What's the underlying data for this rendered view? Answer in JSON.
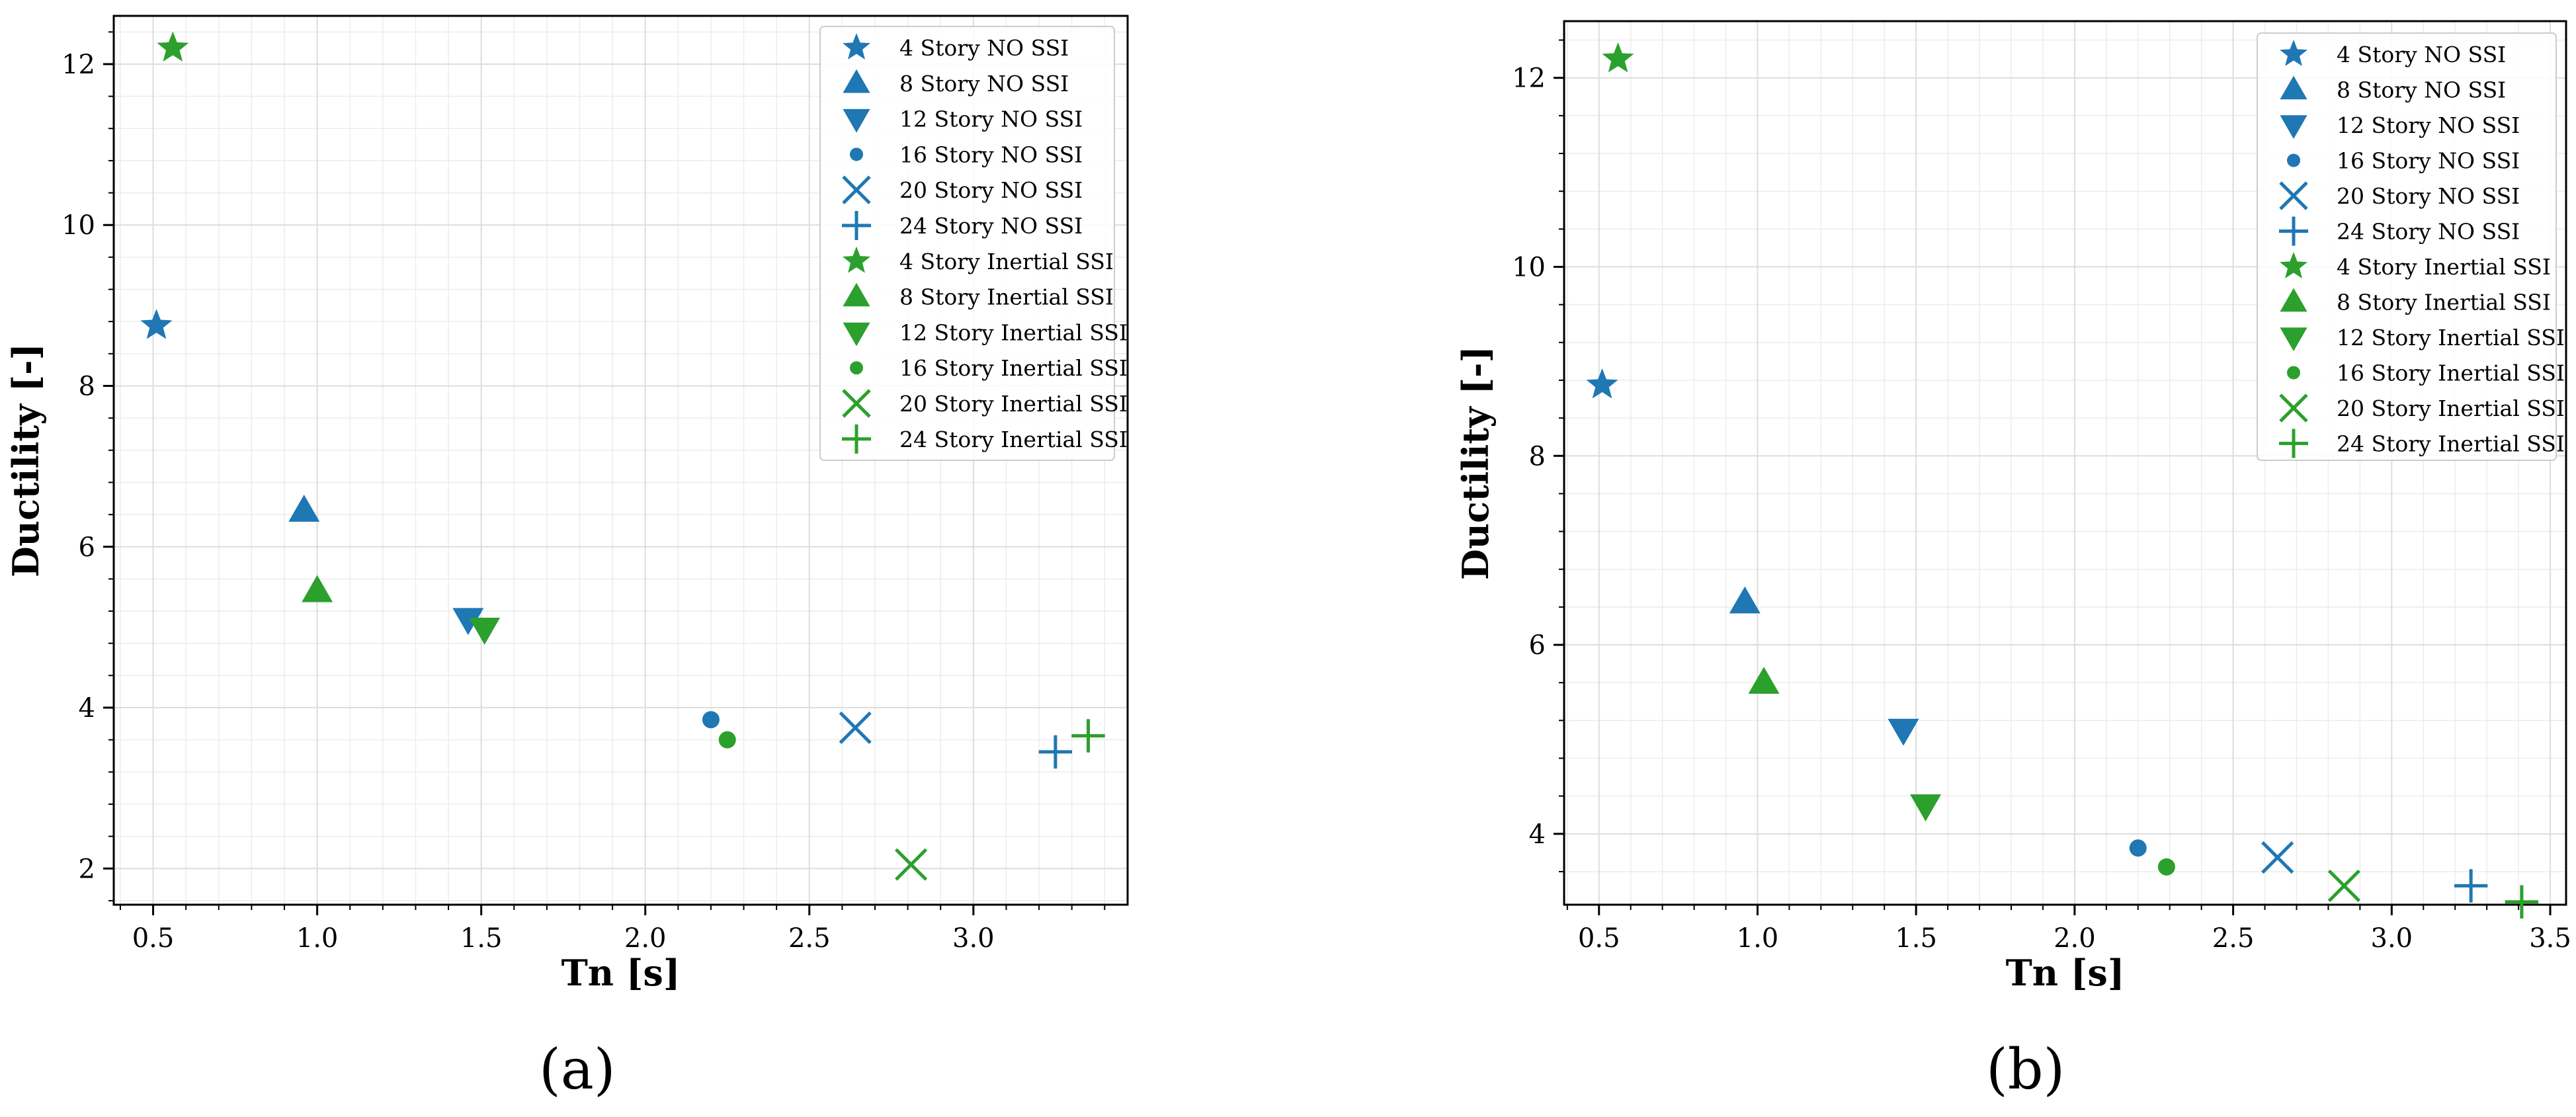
{
  "figure": {
    "series_style": [
      {
        "group": "NO SSI",
        "color": "#1f77b4"
      },
      {
        "group": "Inertial SSI",
        "color": "#2ca02c"
      }
    ],
    "markers": [
      "star-icon",
      "triangle-up-icon",
      "triangle-down-icon",
      "circle-icon",
      "x-icon",
      "plus-icon"
    ]
  },
  "chart_data": [
    {
      "type": "scatter",
      "panel_label": "(a)",
      "xlabel": "Tn [s]",
      "ylabel": "Ductility [-]",
      "xlim": [
        0.38,
        3.47
      ],
      "ylim": [
        1.55,
        12.6
      ],
      "xticks": [
        "0.5",
        "1.0",
        "1.5",
        "2.0",
        "2.5",
        "3.0"
      ],
      "yticks": [
        "2",
        "4",
        "6",
        "8",
        "10",
        "12"
      ],
      "grid": true,
      "legend_position": "top-right",
      "series": [
        {
          "name": "4 Story NO SSI",
          "color": "#1f77b4",
          "marker": "star",
          "x": 0.51,
          "y": 8.75
        },
        {
          "name": "8 Story NO SSI",
          "color": "#1f77b4",
          "marker": "triangle-up",
          "x": 0.96,
          "y": 6.45
        },
        {
          "name": "12 Story NO SSI",
          "color": "#1f77b4",
          "marker": "triangle-down",
          "x": 1.46,
          "y": 5.1
        },
        {
          "name": "16 Story NO SSI",
          "color": "#1f77b4",
          "marker": "circle",
          "x": 2.2,
          "y": 3.85
        },
        {
          "name": "20 Story NO SSI",
          "color": "#1f77b4",
          "marker": "x",
          "x": 2.64,
          "y": 3.75
        },
        {
          "name": "24 Story NO SSI",
          "color": "#1f77b4",
          "marker": "plus",
          "x": 3.25,
          "y": 3.45
        },
        {
          "name": "4 Story Inertial SSI",
          "color": "#2ca02c",
          "marker": "star",
          "x": 0.56,
          "y": 12.2
        },
        {
          "name": "8 Story Inertial SSI",
          "color": "#2ca02c",
          "marker": "triangle-up",
          "x": 1.0,
          "y": 5.45
        },
        {
          "name": "12 Story Inertial SSI",
          "color": "#2ca02c",
          "marker": "triangle-down",
          "x": 1.51,
          "y": 4.98
        },
        {
          "name": "16 Story Inertial SSI",
          "color": "#2ca02c",
          "marker": "circle",
          "x": 2.25,
          "y": 3.6
        },
        {
          "name": "20 Story Inertial SSI",
          "color": "#2ca02c",
          "marker": "x",
          "x": 2.81,
          "y": 2.05
        },
        {
          "name": "24 Story Inertial SSI",
          "color": "#2ca02c",
          "marker": "plus",
          "x": 3.35,
          "y": 3.65
        }
      ]
    },
    {
      "type": "scatter",
      "panel_label": "(b)",
      "xlabel": "Tn [s]",
      "ylabel": "Ductility [-]",
      "xlim": [
        0.39,
        3.55
      ],
      "ylim": [
        3.25,
        12.6
      ],
      "xticks": [
        "0.5",
        "1.0",
        "1.5",
        "2.0",
        "2.5",
        "3.0",
        "3.5"
      ],
      "yticks": [
        "4",
        "6",
        "8",
        "10",
        "12"
      ],
      "grid": true,
      "legend_position": "top-right",
      "series": [
        {
          "name": "4 Story NO SSI",
          "color": "#1f77b4",
          "marker": "star",
          "x": 0.51,
          "y": 8.75
        },
        {
          "name": "8 Story NO SSI",
          "color": "#1f77b4",
          "marker": "triangle-up",
          "x": 0.96,
          "y": 6.45
        },
        {
          "name": "12 Story NO SSI",
          "color": "#1f77b4",
          "marker": "triangle-down",
          "x": 1.46,
          "y": 5.1
        },
        {
          "name": "16 Story NO SSI",
          "color": "#1f77b4",
          "marker": "circle",
          "x": 2.2,
          "y": 3.85
        },
        {
          "name": "20 Story NO SSI",
          "color": "#1f77b4",
          "marker": "x",
          "x": 2.64,
          "y": 3.75
        },
        {
          "name": "24 Story NO SSI",
          "color": "#1f77b4",
          "marker": "plus",
          "x": 3.25,
          "y": 3.45
        },
        {
          "name": "4 Story Inertial SSI",
          "color": "#2ca02c",
          "marker": "star",
          "x": 0.56,
          "y": 12.2
        },
        {
          "name": "8 Story Inertial SSI",
          "color": "#2ca02c",
          "marker": "triangle-up",
          "x": 1.02,
          "y": 5.6
        },
        {
          "name": "12 Story Inertial SSI",
          "color": "#2ca02c",
          "marker": "triangle-down",
          "x": 1.53,
          "y": 4.3
        },
        {
          "name": "16 Story Inertial SSI",
          "color": "#2ca02c",
          "marker": "circle",
          "x": 2.29,
          "y": 3.65
        },
        {
          "name": "20 Story Inertial SSI",
          "color": "#2ca02c",
          "marker": "x",
          "x": 2.85,
          "y": 3.45
        },
        {
          "name": "24 Story Inertial SSI",
          "color": "#2ca02c",
          "marker": "plus",
          "x": 3.41,
          "y": 3.28
        }
      ]
    }
  ]
}
